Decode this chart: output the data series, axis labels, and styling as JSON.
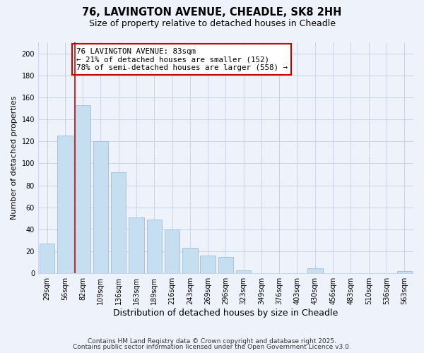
{
  "title": "76, LAVINGTON AVENUE, CHEADLE, SK8 2HH",
  "subtitle": "Size of property relative to detached houses in Cheadle",
  "xlabel": "Distribution of detached houses by size in Cheadle",
  "ylabel": "Number of detached properties",
  "bar_labels": [
    "29sqm",
    "56sqm",
    "82sqm",
    "109sqm",
    "136sqm",
    "163sqm",
    "189sqm",
    "216sqm",
    "243sqm",
    "269sqm",
    "296sqm",
    "323sqm",
    "349sqm",
    "376sqm",
    "403sqm",
    "430sqm",
    "456sqm",
    "483sqm",
    "510sqm",
    "536sqm",
    "563sqm"
  ],
  "bar_values": [
    27,
    125,
    153,
    120,
    92,
    51,
    49,
    40,
    23,
    16,
    15,
    3,
    0,
    0,
    0,
    5,
    0,
    0,
    0,
    0,
    2
  ],
  "bar_color": "#c6dff0",
  "bar_edge_color": "#a0bcd8",
  "vline_color": "#cc0000",
  "annotation_line1": "76 LAVINGTON AVENUE: 83sqm",
  "annotation_line2": "← 21% of detached houses are smaller (152)",
  "annotation_line3": "78% of semi-detached houses are larger (558) →",
  "annotation_box_color": "#ffffff",
  "annotation_box_edge_color": "#cc0000",
  "ylim": [
    0,
    210
  ],
  "yticks": [
    0,
    20,
    40,
    60,
    80,
    100,
    120,
    140,
    160,
    180,
    200
  ],
  "footer1": "Contains HM Land Registry data © Crown copyright and database right 2025.",
  "footer2": "Contains public sector information licensed under the Open Government Licence v3.0.",
  "bg_color": "#eef2fa",
  "grid_color": "#c8d4e8"
}
